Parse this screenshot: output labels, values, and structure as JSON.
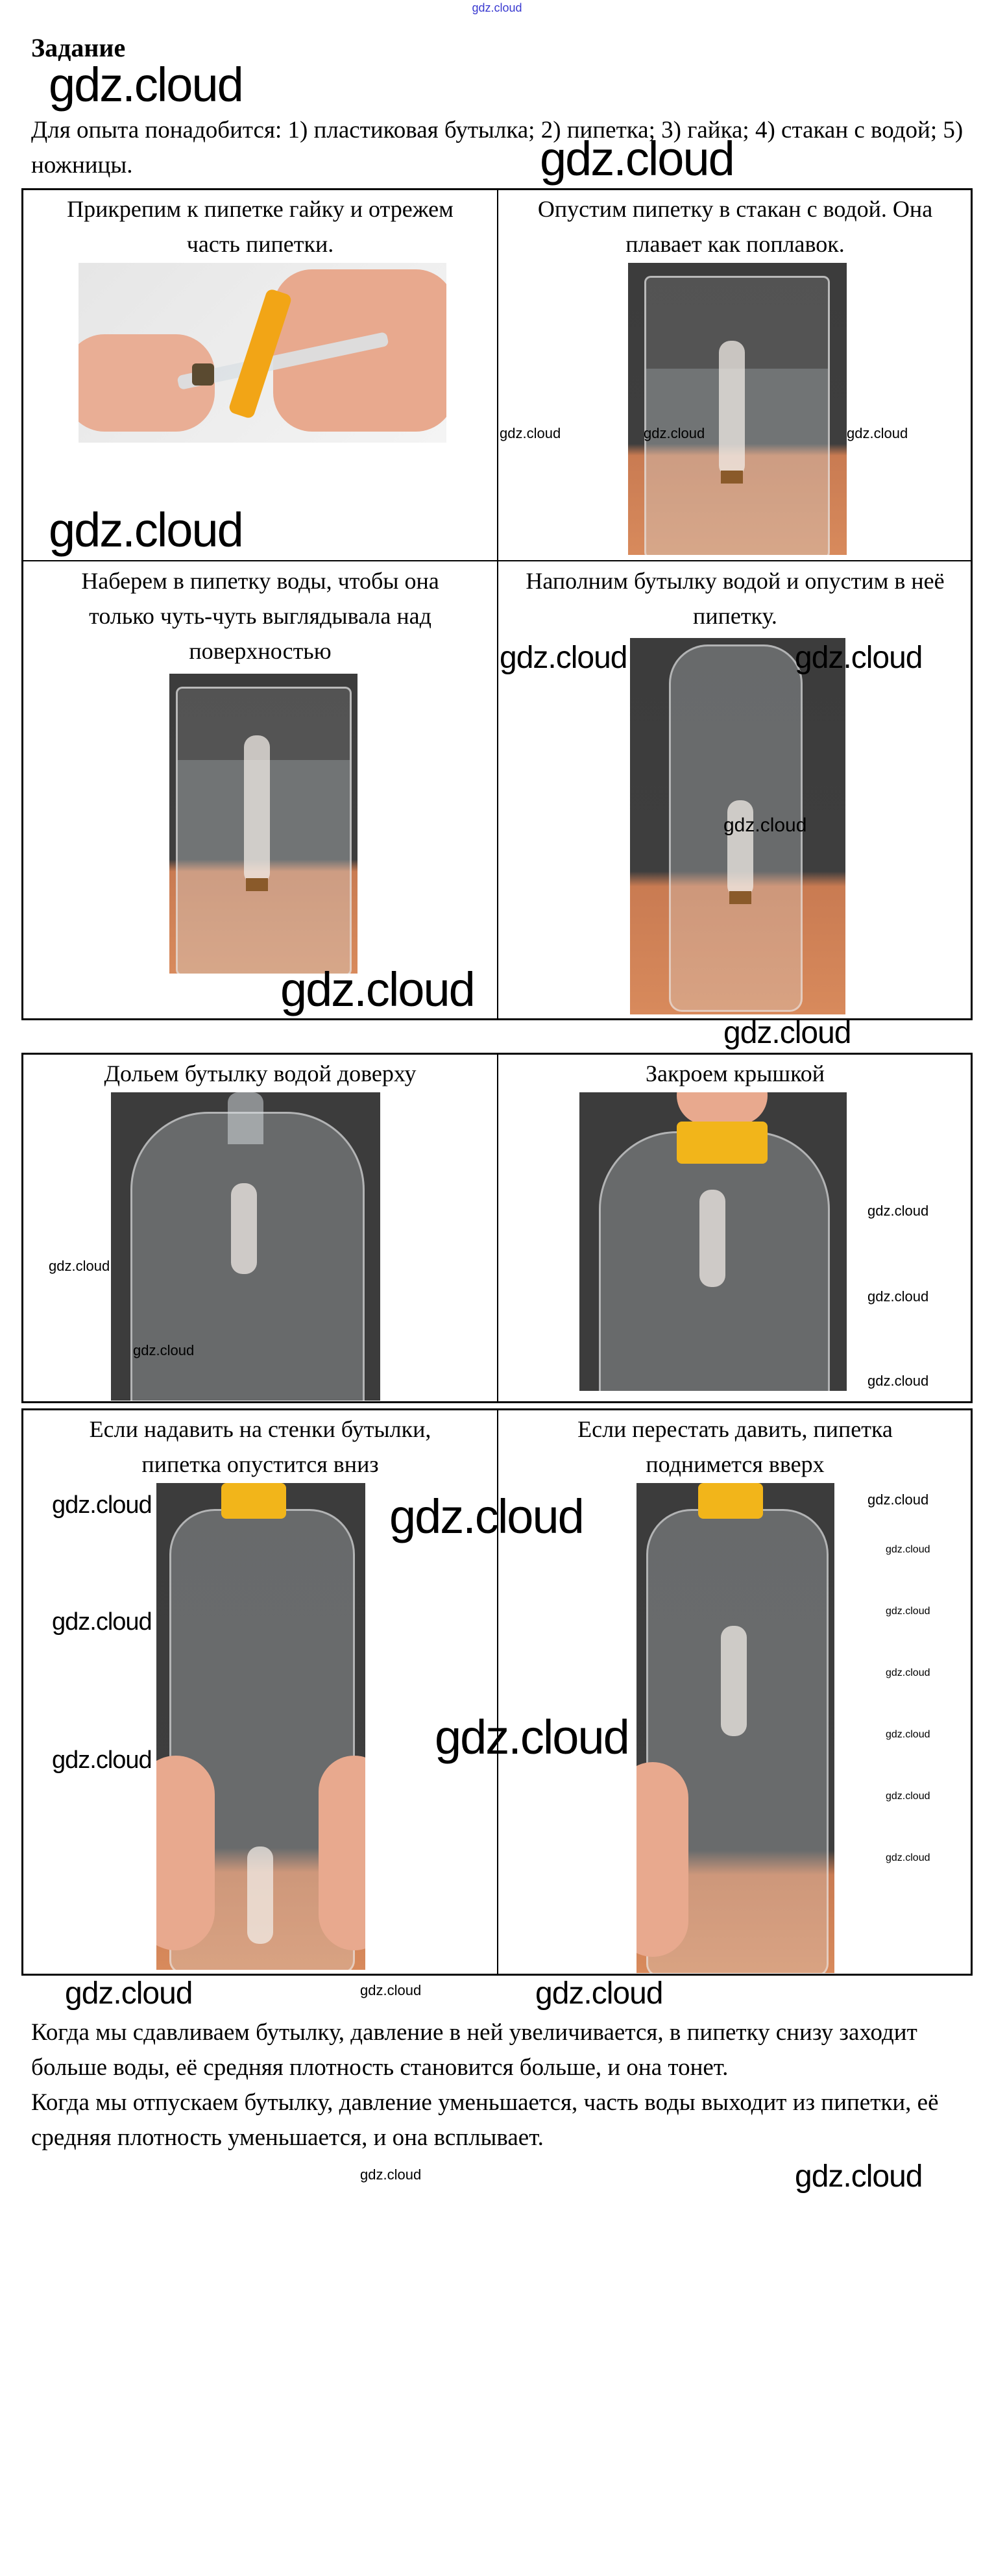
{
  "watermark": {
    "text": "gdz.cloud"
  },
  "task": {
    "title": "Задание",
    "intro": "Для опыта понадобится: 1) пластиковая бутылка; 2) пипетка; 3) гайка; 4) стакан с водой; 5) ножницы."
  },
  "steps": [
    {
      "caption": "Прикрепим к пипетке гайку и отрежем\nчасть пипетки."
    },
    {
      "caption": "Опустим пипетку в стакан с водой. Она\nплавает как поплавок."
    },
    {
      "caption": "Наберем в пипетку воды, чтобы она\nтолько чуть-чуть выглядывала над\nповерхностью"
    },
    {
      "caption": "Наполним бутылку водой и опустим в неё\nпипетку."
    },
    {
      "caption": "Дольем бутылку водой доверху"
    },
    {
      "caption": "Закроем крышкой"
    },
    {
      "caption": "Если надавить на стенки бутылки,\nпипетка опустится вниз"
    },
    {
      "caption": "Если перестать давить, пипетка\nподнимется вверх"
    }
  ],
  "conclusion": [
    "Когда мы сдавливаем бутылку, давление в ней увеличивается, в пипетку снизу заходит больше воды, её средняя плотность становится больше, и она тонет.",
    "Когда мы отпускаем бутылку, давление уменьшается, часть воды выходит из пипетки, её средняя плотность уменьшается, и она всплывает."
  ],
  "colors": {
    "photo_background": "#3c3c3c",
    "table_surface": "#d88a5c",
    "cap": "#f2b51a",
    "watermark_top": "#3a3ad0"
  }
}
